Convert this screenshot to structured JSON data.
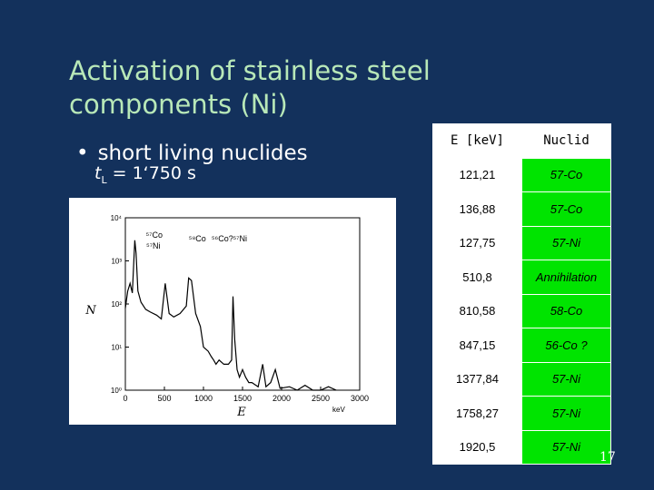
{
  "title": "Activation of stainless steel components (Ni)",
  "bullet": "short living nuclides",
  "time_label": {
    "var": "t",
    "sub": "L",
    "value": " = 1‘750 s"
  },
  "page_number": "17",
  "table": {
    "headers": {
      "energy": "E [keV]",
      "nuclide": "Nuclid"
    },
    "rows": [
      {
        "energy": "121,21",
        "nuclide": "57-Co"
      },
      {
        "energy": "136,88",
        "nuclide": "57-Co"
      },
      {
        "energy": "127,75",
        "nuclide": "57-Ni"
      },
      {
        "energy": "510,8",
        "nuclide": "Annihilation"
      },
      {
        "energy": "810,58",
        "nuclide": "58-Co"
      },
      {
        "energy": "847,15",
        "nuclide": "56-Co ?"
      },
      {
        "energy": "1377,84",
        "nuclide": "57-Ni"
      },
      {
        "energy": "1758,27",
        "nuclide": "57-Ni"
      },
      {
        "energy": "1920,5",
        "nuclide": "57-Ni"
      }
    ]
  },
  "chart_data": {
    "type": "line",
    "xlabel": "E",
    "ylabel": "N",
    "x_unit": "keV",
    "x_ticks": [
      "0",
      "500",
      "1000",
      "1500",
      "2000",
      "2500",
      "3000"
    ],
    "y_ticks": [
      "10⁰",
      "10¹",
      "10²",
      "10³",
      "10⁴"
    ],
    "xlim": [
      0,
      3000
    ],
    "ylim_log10": [
      0,
      4
    ],
    "yscale": "log",
    "annotations": [
      {
        "label": "⁵⁷Co",
        "x": 122
      },
      {
        "label": "⁵⁷Ni",
        "x": 128
      },
      {
        "label": "⁵⁸Co",
        "x": 811
      },
      {
        "label": "⁵⁶Co?",
        "x": 847
      },
      {
        "label": "⁵⁷Ni",
        "x": 1378
      }
    ],
    "spectrum": {
      "x": [
        0,
        30,
        60,
        90,
        121,
        137,
        160,
        200,
        260,
        320,
        400,
        460,
        511,
        560,
        620,
        700,
        780,
        811,
        847,
        900,
        960,
        1000,
        1060,
        1100,
        1130,
        1160,
        1200,
        1260,
        1320,
        1360,
        1378,
        1400,
        1430,
        1460,
        1500,
        1540,
        1580,
        1620,
        1700,
        1758,
        1800,
        1860,
        1920,
        1980,
        2100,
        2200,
        2300,
        2400,
        2500,
        2600,
        2700
      ],
      "y": [
        80,
        200,
        300,
        180,
        3000,
        1500,
        200,
        110,
        75,
        65,
        55,
        45,
        300,
        60,
        50,
        60,
        90,
        400,
        350,
        60,
        30,
        10,
        8,
        6,
        5,
        4,
        5,
        4,
        4,
        5,
        150,
        15,
        3,
        2,
        3,
        2,
        1.5,
        1.5,
        1.2,
        4,
        1.2,
        1.5,
        3,
        1.1,
        1.2,
        1,
        1.3,
        1,
        1,
        1.2,
        1
      ]
    }
  }
}
